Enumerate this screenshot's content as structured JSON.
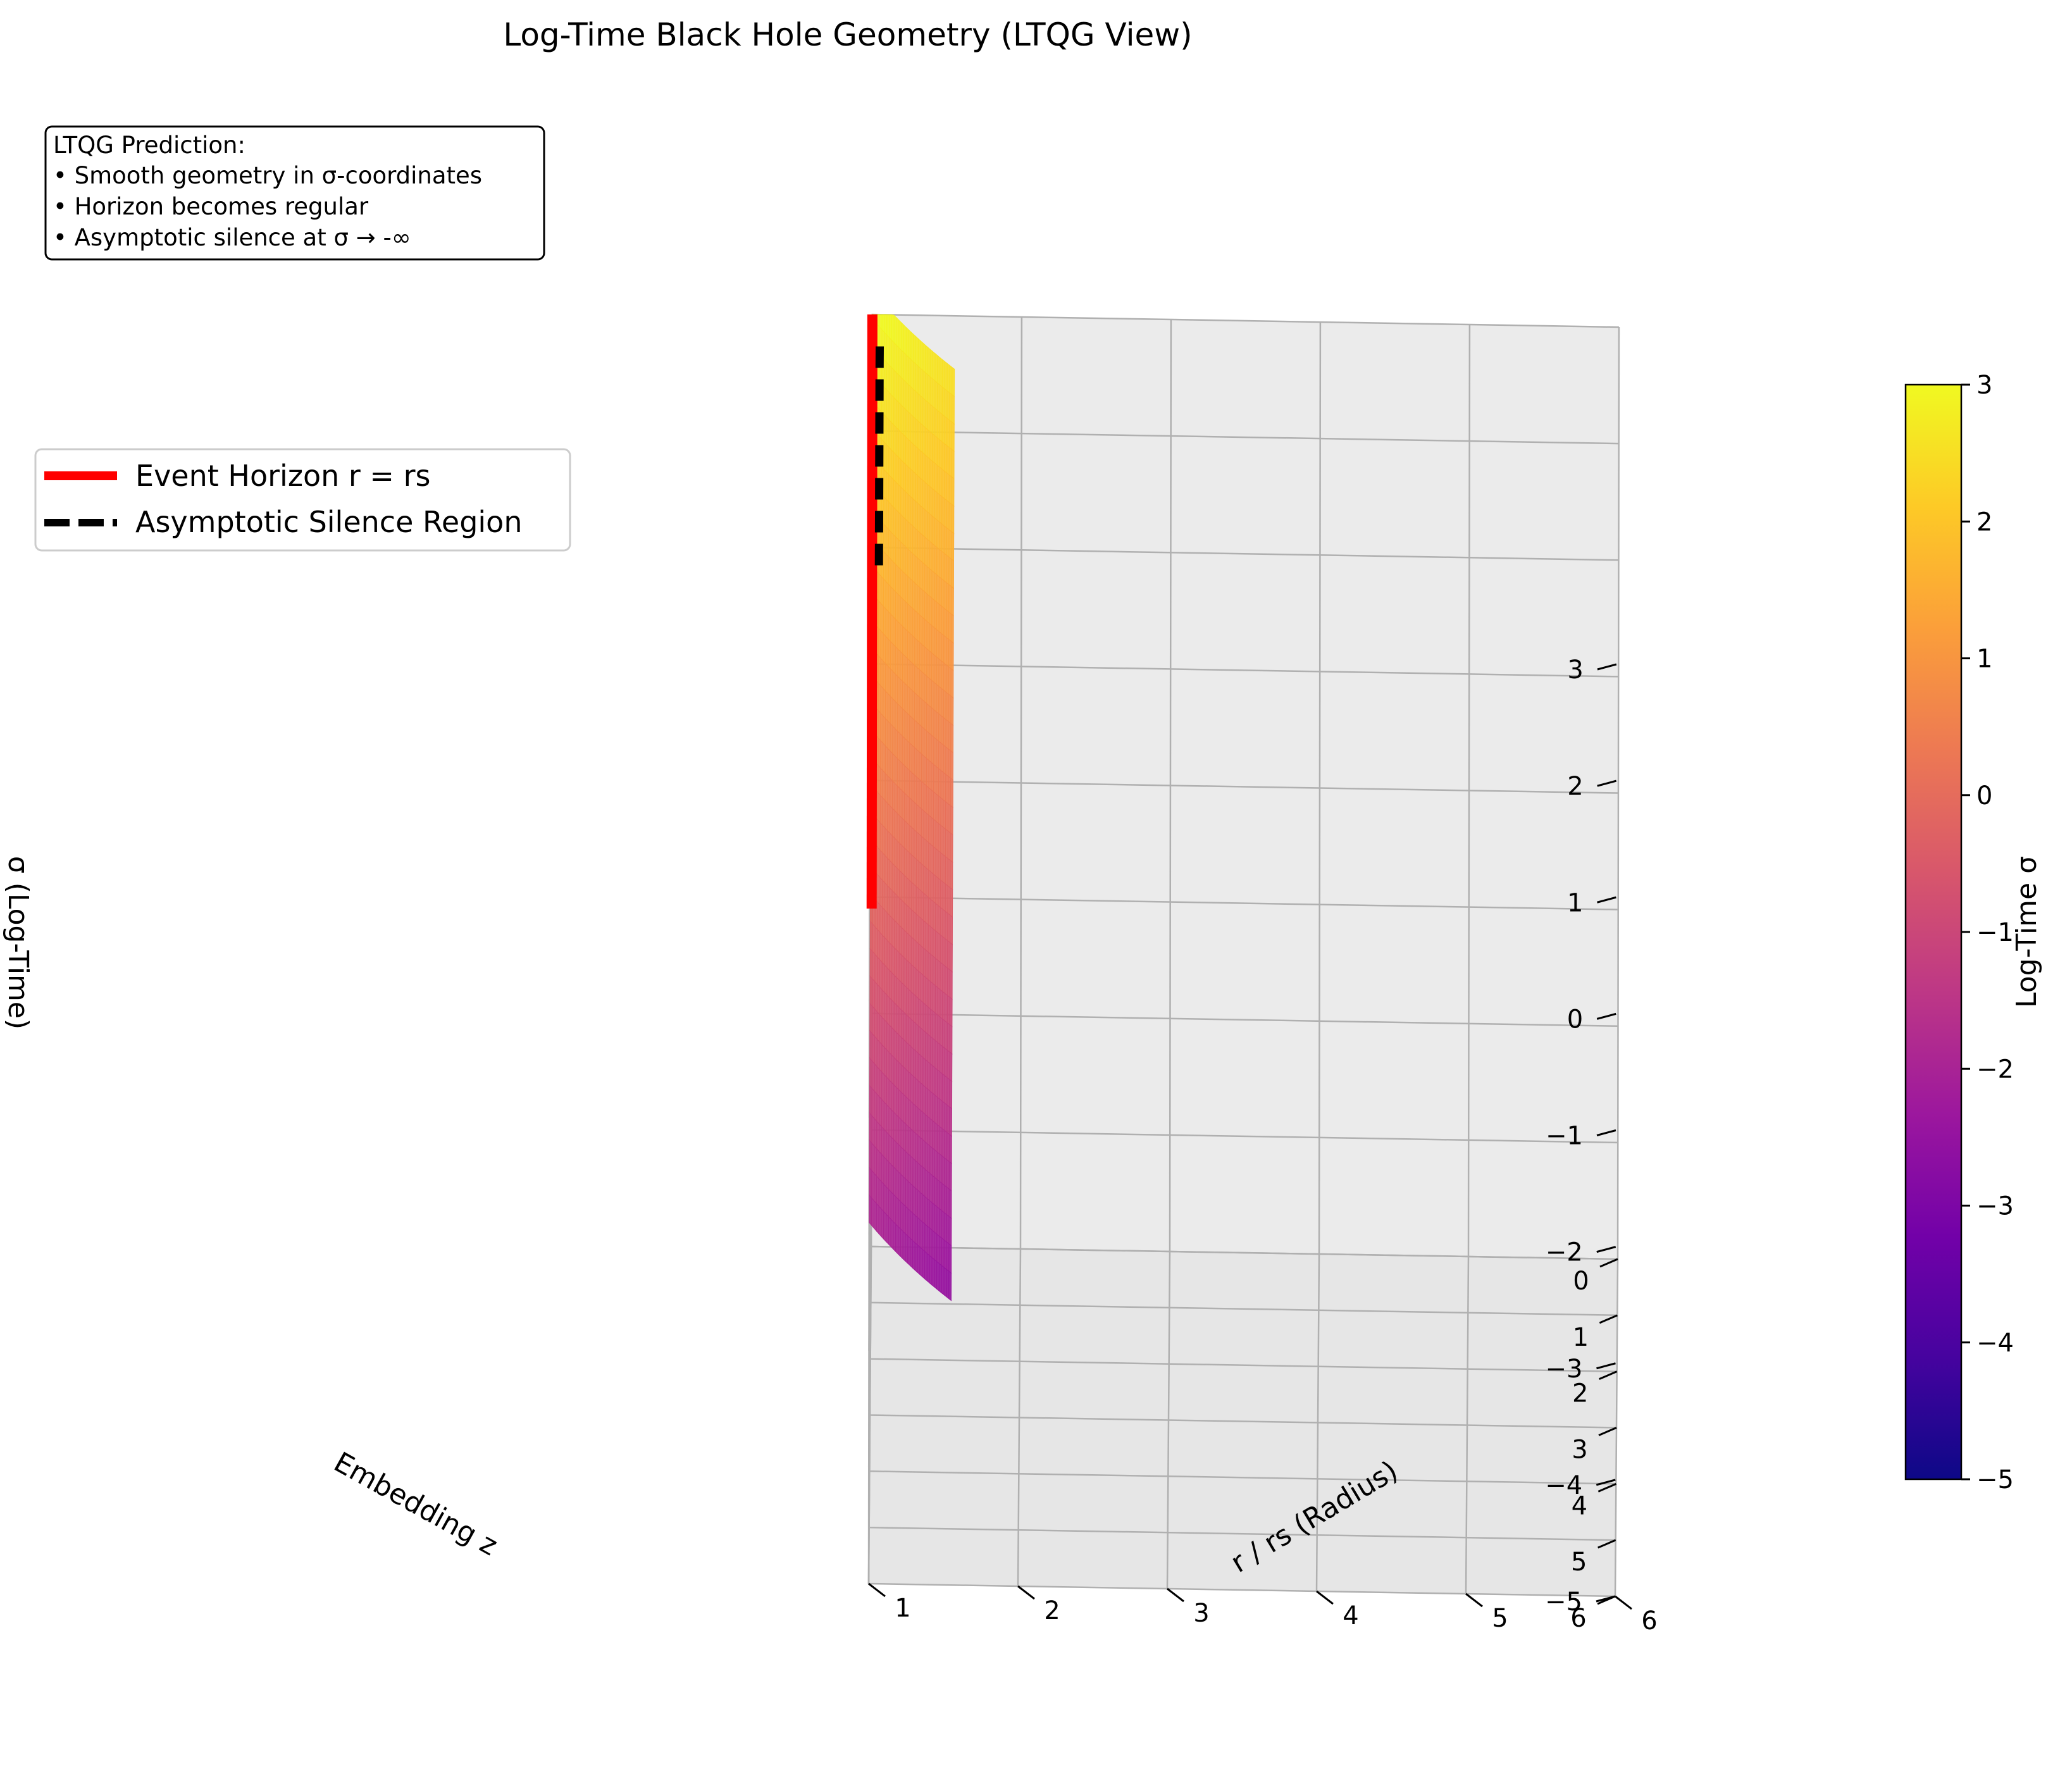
{
  "chart_data": {
    "type": "surface3d",
    "title": "Log-Time Black Hole Geometry (LTQG View)",
    "axes": {
      "x": {
        "label": "r / rs (Radius)",
        "ticks": [
          "1",
          "2",
          "3",
          "4",
          "5",
          "6"
        ],
        "range": [
          1,
          6
        ]
      },
      "y": {
        "label": "Embedding z",
        "ticks": [
          "0",
          "1",
          "2",
          "3",
          "4",
          "5",
          "6"
        ],
        "range": [
          0,
          6
        ]
      },
      "z": {
        "label": "σ (Log-Time)",
        "ticks": [
          "−5",
          "−4",
          "−3",
          "−2",
          "−1",
          "0",
          "1",
          "2",
          "3"
        ],
        "range": [
          -5,
          3
        ]
      }
    },
    "grid": true,
    "surface": {
      "description": "Log-time surface sigma over (r/rs, embedding z)",
      "colormap": "plasma",
      "sigma_range": [
        -5,
        3
      ]
    },
    "series": [
      {
        "name": "Event Horizon r = rs",
        "style": "solid",
        "color": "#ff0000"
      },
      {
        "name": "Asymptotic Silence Region",
        "style": "dashed",
        "color": "#000000"
      }
    ],
    "legend_position": "upper-left",
    "annotation": {
      "lines": [
        "LTQG Prediction:",
        "• Smooth geometry in σ-coordinates",
        "• Horizon becomes regular",
        "• Asymptotic silence at σ → -∞"
      ]
    },
    "colorbar": {
      "label": "Log-Time σ",
      "ticks": [
        "−5",
        "−4",
        "−3",
        "−2",
        "−1",
        "0",
        "1",
        "2",
        "3"
      ],
      "range": [
        -5,
        3
      ],
      "colors": [
        "#0d0887",
        "#46039f",
        "#7201a8",
        "#9c179e",
        "#bd3786",
        "#d8576b",
        "#ed7953",
        "#fb9f3a",
        "#fdca26",
        "#f0f921"
      ]
    }
  }
}
